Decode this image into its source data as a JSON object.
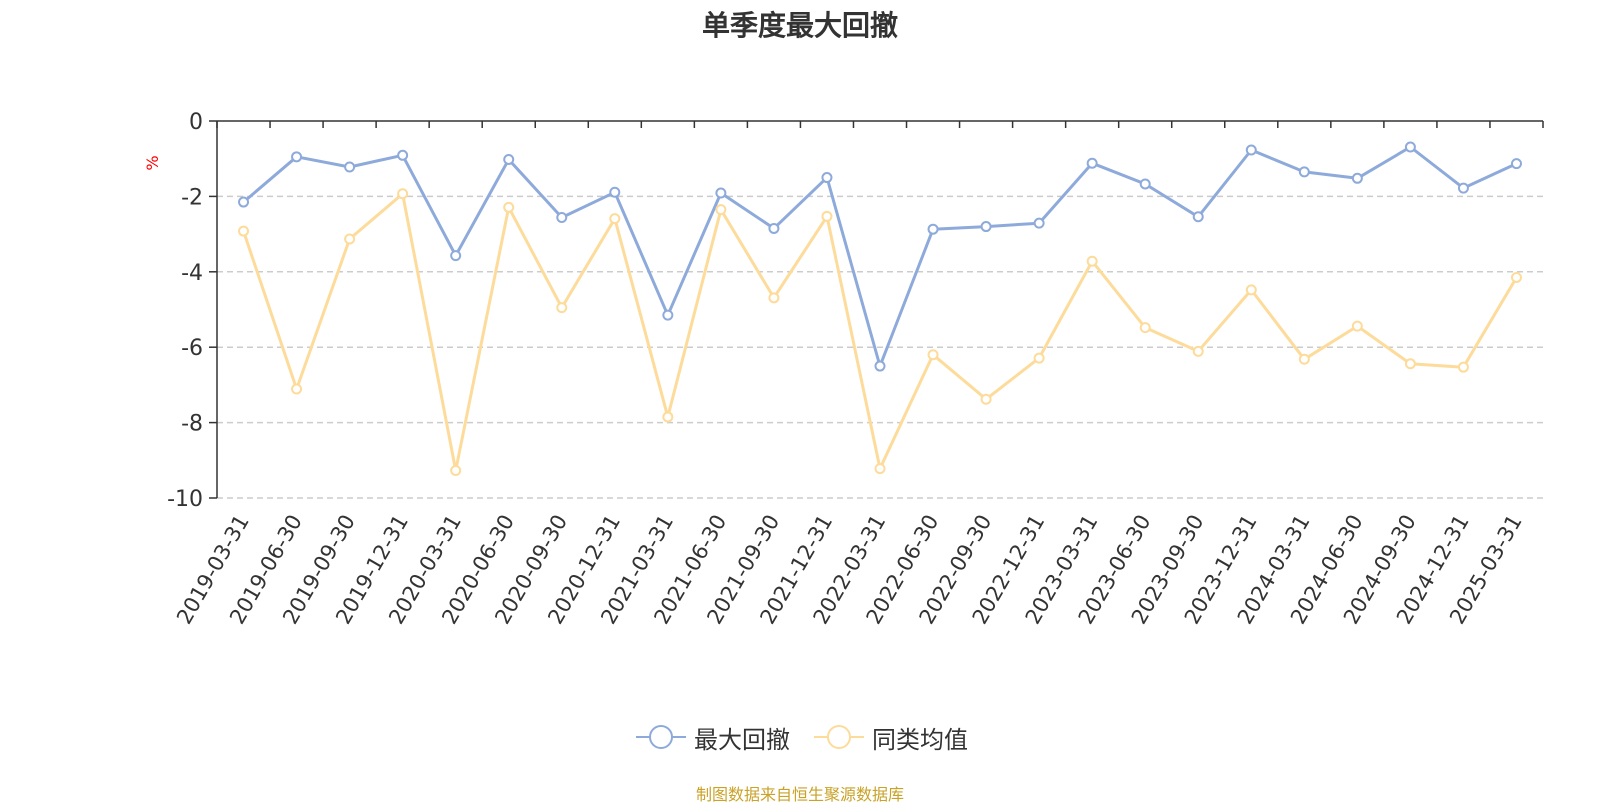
{
  "chart_data": {
    "type": "line",
    "title": "单季度最大回撤",
    "ylabel": "%",
    "ylim": [
      -10,
      0
    ],
    "yticks": [
      0,
      -2,
      -4,
      -6,
      -8,
      -10
    ],
    "grid": "horizontal dashed",
    "legend_position": "bottom-center",
    "categories": [
      "2019-03-31",
      "2019-06-30",
      "2019-09-30",
      "2019-12-31",
      "2020-03-31",
      "2020-06-30",
      "2020-09-30",
      "2020-12-31",
      "2021-03-31",
      "2021-06-30",
      "2021-09-30",
      "2021-12-31",
      "2022-03-31",
      "2022-06-30",
      "2022-09-30",
      "2022-12-31",
      "2023-03-31",
      "2023-06-30",
      "2023-09-30",
      "2023-12-31",
      "2024-03-31",
      "2024-06-30",
      "2024-09-30",
      "2024-12-31",
      "2025-03-31"
    ],
    "series": [
      {
        "name": "最大回撤",
        "color": "#8eaadb",
        "values": [
          -2.15,
          -0.95,
          -1.22,
          -0.91,
          -3.57,
          -1.02,
          -2.56,
          -1.89,
          -5.15,
          -1.91,
          -2.85,
          -1.5,
          -6.5,
          -2.87,
          -2.8,
          -2.71,
          -1.12,
          -1.67,
          -2.54,
          -0.77,
          -1.35,
          -1.52,
          -0.69,
          -1.78,
          -1.13
        ]
      },
      {
        "name": "同类均值",
        "color": "#fddb9a",
        "values": [
          -2.92,
          -7.11,
          -3.13,
          -1.93,
          -9.27,
          -2.29,
          -4.95,
          -2.59,
          -7.85,
          -2.35,
          -4.69,
          -2.53,
          -9.22,
          -6.2,
          -7.38,
          -6.29,
          -3.72,
          -5.48,
          -6.11,
          -4.48,
          -6.32,
          -5.44,
          -6.44,
          -6.53,
          -4.15
        ]
      }
    ]
  },
  "footer": {
    "source": "制图数据来自恒生聚源数据库"
  }
}
